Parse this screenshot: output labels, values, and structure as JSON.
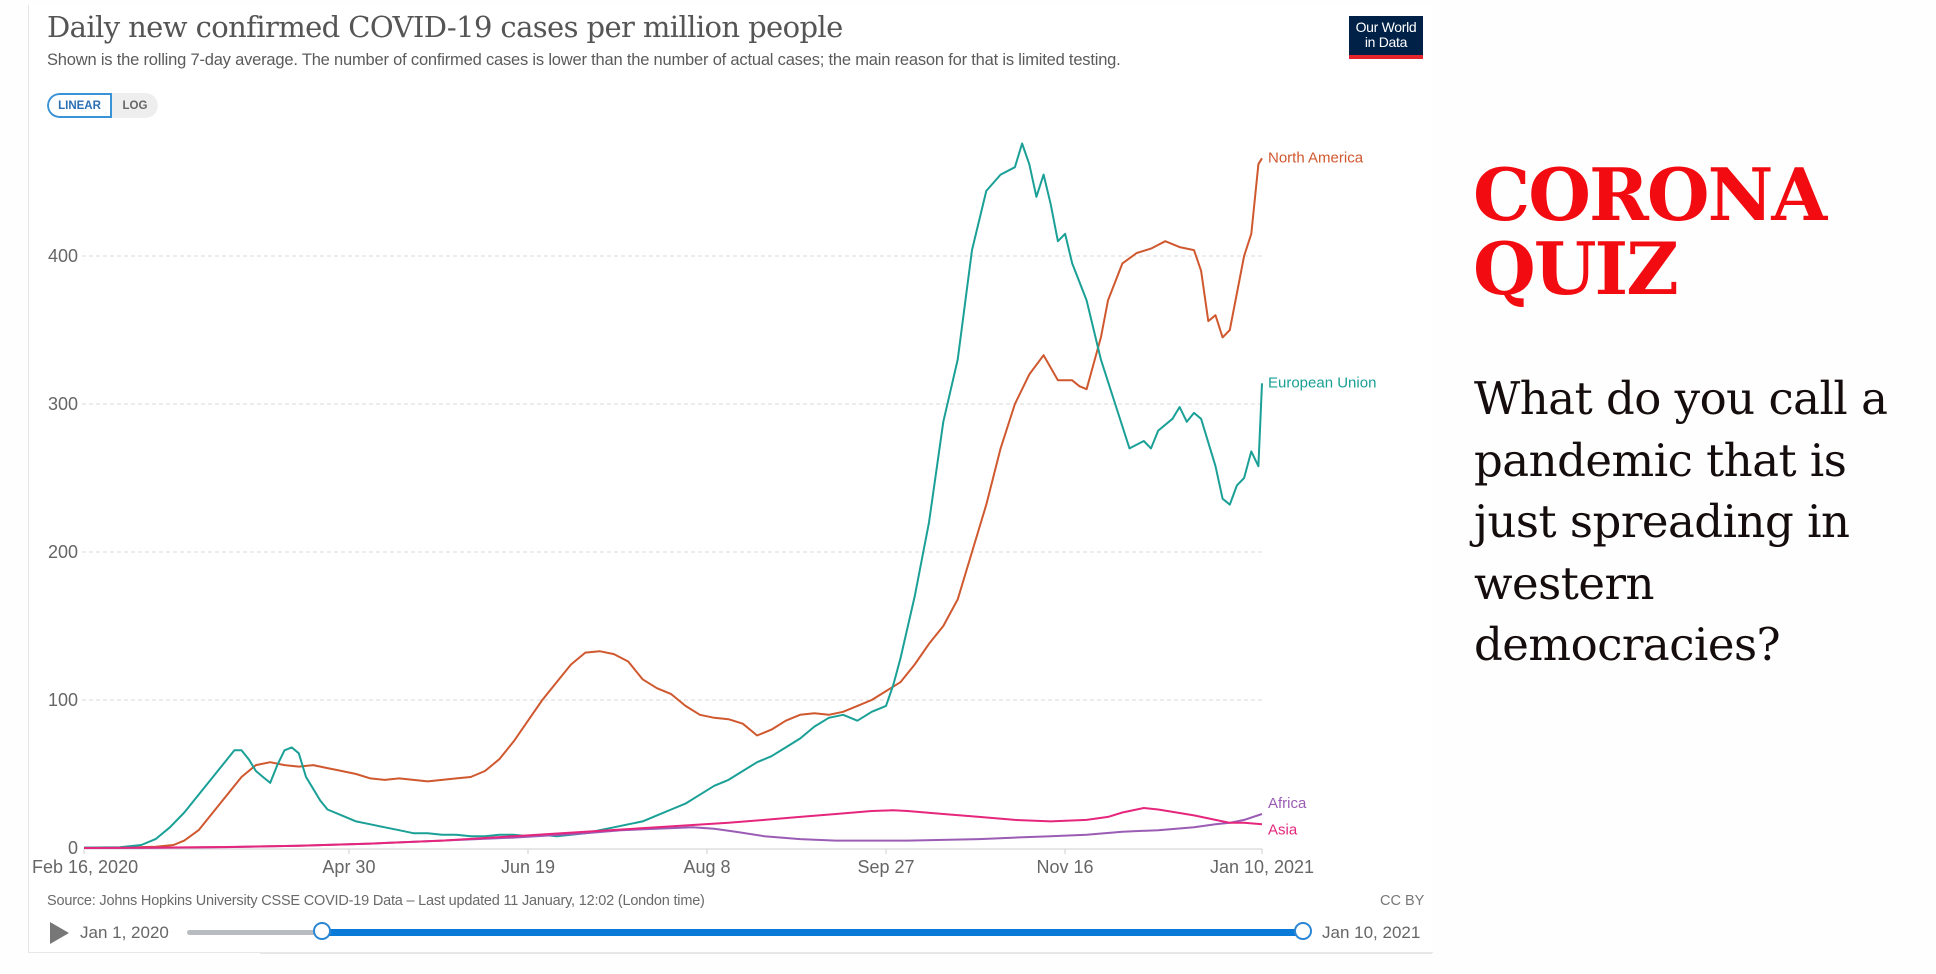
{
  "chart_data": {
    "type": "line",
    "title": "Daily new confirmed COVID-19 cases per million people",
    "subtitle": "Shown is the rolling 7-day average. The number of confirmed cases is lower than the number of actual cases; the main reason for that is limited testing.",
    "xlabel": "",
    "ylabel": "",
    "ylim": [
      0,
      480
    ],
    "yticks": [
      0,
      100,
      200,
      300,
      400
    ],
    "ytick_labels": [
      "0",
      "100",
      "200",
      "300",
      "400"
    ],
    "x_start": "2020-02-16",
    "x_end": "2021-01-10",
    "xlim_days": [
      0,
      329
    ],
    "xticks": [
      {
        "day": 0,
        "label": "Feb 16, 2020"
      },
      {
        "day": 74,
        "label": "Apr 30"
      },
      {
        "day": 124,
        "label": "Jun 19"
      },
      {
        "day": 174,
        "label": "Aug 8"
      },
      {
        "day": 224,
        "label": "Sep 27"
      },
      {
        "day": 274,
        "label": "Nov 16"
      },
      {
        "day": 329,
        "label": "Jan 10, 2021"
      }
    ],
    "grid": true,
    "legend": "end-of-line labels (right)",
    "x_unit": "days since Feb 16, 2020",
    "series": [
      {
        "name": "North America",
        "color": "#d0582f",
        "x": [
          0,
          10,
          20,
          25,
          28,
          32,
          36,
          40,
          44,
          48,
          52,
          56,
          60,
          64,
          68,
          72,
          76,
          80,
          84,
          88,
          92,
          96,
          100,
          104,
          108,
          112,
          116,
          120,
          124,
          128,
          132,
          136,
          140,
          144,
          148,
          152,
          156,
          160,
          164,
          168,
          172,
          176,
          180,
          184,
          188,
          192,
          196,
          200,
          204,
          208,
          212,
          216,
          220,
          224,
          228,
          232,
          236,
          240,
          244,
          248,
          252,
          256,
          260,
          264,
          268,
          272,
          276,
          278,
          280,
          284,
          286,
          290,
          294,
          298,
          302,
          306,
          310,
          312,
          314,
          316,
          318,
          320,
          324,
          326,
          328,
          329
        ],
        "y": [
          0.2,
          0.3,
          0.8,
          2,
          5,
          12,
          24,
          36,
          48,
          56,
          58,
          56,
          55,
          56,
          54,
          52,
          50,
          47,
          46,
          47,
          46,
          45,
          46,
          47,
          48,
          52,
          60,
          72,
          86,
          100,
          112,
          124,
          132,
          133,
          131,
          126,
          114,
          108,
          104,
          96,
          90,
          88,
          87,
          84,
          76,
          80,
          86,
          90,
          91,
          90,
          92,
          96,
          100,
          106,
          112,
          124,
          138,
          150,
          168,
          200,
          232,
          270,
          300,
          320,
          333,
          316,
          316,
          312,
          310,
          345,
          370,
          395,
          402,
          405,
          410,
          406,
          404,
          390,
          356,
          360,
          345,
          350,
          400,
          415,
          462,
          466
        ]
      },
      {
        "name": "European Union",
        "color": "#1aa096",
        "x": [
          0,
          10,
          16,
          20,
          24,
          28,
          32,
          36,
          40,
          42,
          44,
          46,
          48,
          50,
          52,
          54,
          56,
          58,
          60,
          62,
          64,
          66,
          68,
          72,
          76,
          80,
          84,
          88,
          92,
          96,
          100,
          104,
          108,
          112,
          116,
          120,
          124,
          128,
          132,
          136,
          140,
          144,
          148,
          152,
          156,
          160,
          164,
          168,
          172,
          176,
          180,
          184,
          188,
          192,
          196,
          200,
          204,
          208,
          212,
          216,
          220,
          224,
          226,
          228,
          232,
          236,
          240,
          244,
          248,
          252,
          256,
          260,
          262,
          264,
          266,
          268,
          270,
          272,
          274,
          276,
          280,
          284,
          288,
          292,
          296,
          298,
          300,
          304,
          306,
          308,
          310,
          312,
          316,
          318,
          320,
          322,
          324,
          326,
          328,
          329
        ],
        "y": [
          0.3,
          0.5,
          2,
          6,
          14,
          24,
          36,
          48,
          60,
          66,
          66,
          60,
          52,
          48,
          44,
          56,
          66,
          68,
          64,
          48,
          40,
          32,
          26,
          22,
          18,
          16,
          14,
          12,
          10,
          10,
          9,
          9,
          8,
          8,
          9,
          9,
          8,
          9,
          8,
          9,
          10,
          12,
          14,
          16,
          18,
          22,
          26,
          30,
          36,
          42,
          46,
          52,
          58,
          62,
          68,
          74,
          82,
          88,
          90,
          86,
          92,
          96,
          110,
          128,
          170,
          220,
          288,
          330,
          404,
          444,
          455,
          460,
          476,
          462,
          440,
          455,
          435,
          410,
          415,
          395,
          370,
          330,
          300,
          270,
          275,
          270,
          282,
          290,
          298,
          288,
          294,
          290,
          258,
          236,
          232,
          245,
          250,
          268,
          258,
          314
        ]
      },
      {
        "name": "Africa",
        "color": "#9a5cb4",
        "x": [
          0,
          20,
          40,
          60,
          80,
          100,
          120,
          140,
          150,
          160,
          170,
          176,
          182,
          190,
          200,
          210,
          220,
          230,
          240,
          250,
          260,
          270,
          280,
          290,
          300,
          310,
          316,
          320,
          324,
          329
        ],
        "y": [
          0,
          0.2,
          0.6,
          1.5,
          3,
          5,
          7,
          10,
          12,
          13,
          14,
          13,
          11,
          8,
          6,
          5,
          5,
          5,
          5.5,
          6,
          7,
          8,
          9,
          11,
          12,
          14,
          16,
          17,
          19,
          23
        ]
      },
      {
        "name": "Asia",
        "color": "#e5267c",
        "x": [
          0,
          20,
          40,
          60,
          80,
          100,
          120,
          140,
          160,
          180,
          190,
          200,
          210,
          220,
          226,
          230,
          240,
          250,
          260,
          270,
          280,
          286,
          290,
          296,
          300,
          310,
          316,
          320,
          324,
          329
        ],
        "y": [
          0,
          0.3,
          0.7,
          1.5,
          3,
          5,
          8,
          11,
          14,
          17,
          19,
          21,
          23,
          25,
          25.5,
          25,
          23,
          21,
          19,
          18,
          19,
          21,
          24,
          27,
          26,
          22,
          19,
          17,
          17,
          16
        ]
      }
    ]
  },
  "controls": {
    "scale_toggle": {
      "options": [
        "LINEAR",
        "LOG"
      ],
      "selected": "LINEAR"
    },
    "timeline": {
      "play_icon": "play-icon",
      "start_label": "Jan 1, 2020",
      "end_label": "Jan 10, 2021"
    }
  },
  "logo": {
    "line1": "Our World",
    "line2": "in Data"
  },
  "footer": {
    "source": "Source: Johns Hopkins University CSSE COVID-19 Data – Last updated 11 January, 12:02 (London time)",
    "license": "CC BY"
  },
  "quiz": {
    "title_line1": "CORONA",
    "title_line2": "QUIZ",
    "question": "What do you call a pandemic that is just spreading in western democracies?"
  }
}
